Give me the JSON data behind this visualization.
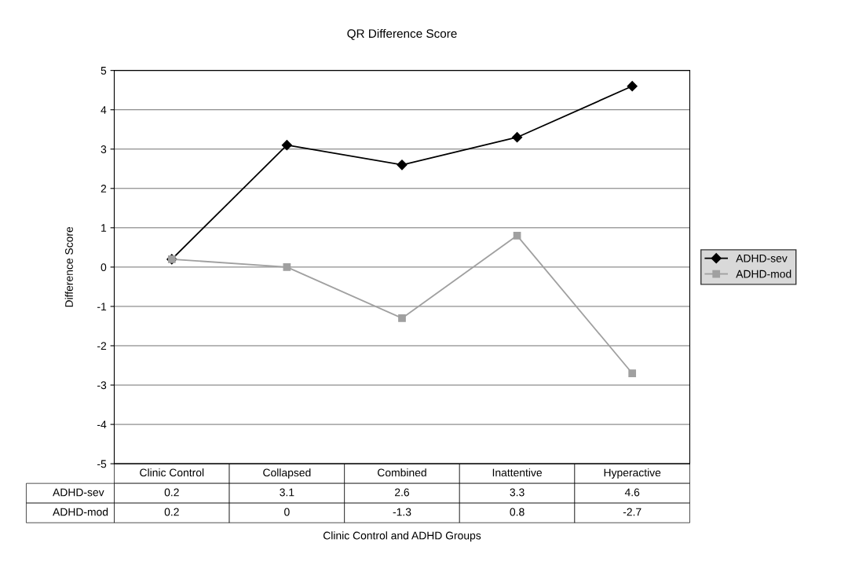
{
  "chart_data": {
    "type": "line",
    "title": "QR Difference Score",
    "xlabel": "Clinic Control and ADHD Groups",
    "ylabel": "Difference Score",
    "categories": [
      "Clinic Control",
      "Collapsed",
      "Combined",
      "Inattentive",
      "Hyperactive"
    ],
    "series": [
      {
        "name": "ADHD-sev",
        "color": "#000000",
        "marker": "diamond",
        "values": [
          0.2,
          3.1,
          2.6,
          3.3,
          4.6
        ]
      },
      {
        "name": "ADHD-mod",
        "color": "#a0a0a0",
        "marker": "square",
        "values": [
          0.2,
          0,
          -1.3,
          0.8,
          -2.7
        ]
      }
    ],
    "ylim": [
      -5,
      5
    ],
    "yticks": [
      -5,
      -4,
      -3,
      -2,
      -1,
      0,
      1,
      2,
      3,
      4,
      5
    ],
    "grid": "y",
    "legend": "right",
    "data_labels": true
  }
}
